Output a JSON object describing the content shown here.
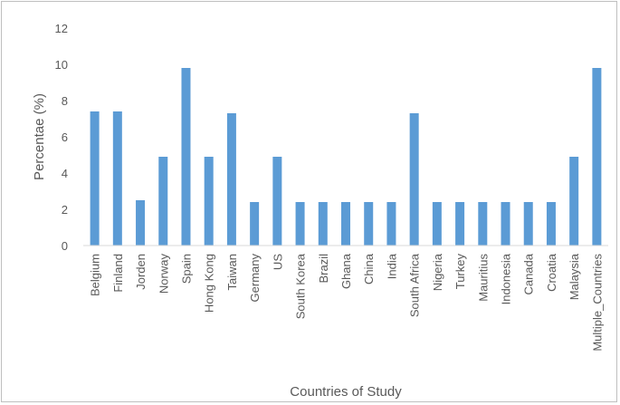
{
  "chart_data": {
    "type": "bar",
    "title": "",
    "xlabel": "Countries of Study",
    "ylabel": "Percentae (%)",
    "ylim": [
      0,
      12
    ],
    "yticks": [
      0,
      2,
      4,
      6,
      8,
      10,
      12
    ],
    "grid": false,
    "legend": "none",
    "bar_color": "#5b9bd5",
    "categories": [
      "Belgium",
      "Finland",
      "Jorden",
      "Norway",
      "Spain",
      "Hong Kong",
      "Taiwan",
      "Germany",
      "US",
      "South Korea",
      "Brazil",
      "Ghana",
      "China",
      "India",
      "South Africa",
      "Nigeria",
      "Turkey",
      "Mauritius",
      "Indonesia",
      "Canada",
      "Croatia",
      "Malaysia",
      "Multiple_Countries"
    ],
    "values": [
      7.4,
      7.4,
      2.5,
      4.9,
      9.8,
      4.9,
      7.3,
      2.4,
      4.9,
      2.4,
      2.4,
      2.4,
      2.4,
      2.4,
      7.3,
      2.4,
      2.4,
      2.4,
      2.4,
      2.4,
      2.4,
      4.9,
      9.8
    ]
  }
}
